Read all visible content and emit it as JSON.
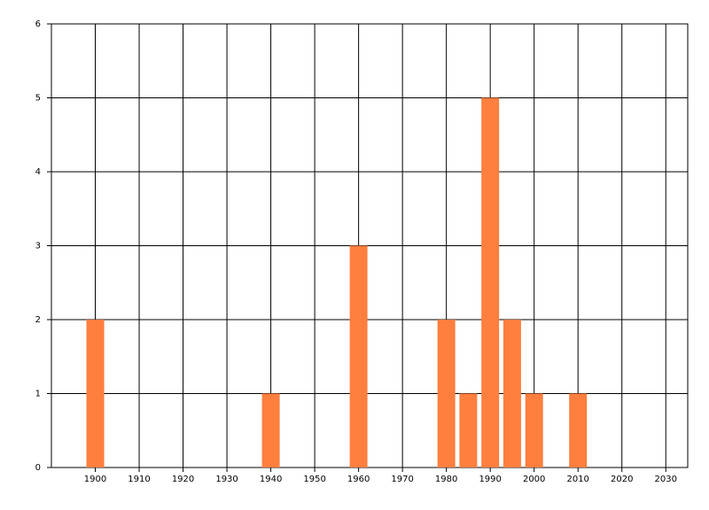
{
  "chart_data": {
    "type": "bar",
    "x": [
      1900,
      1940,
      1960,
      1980,
      1985,
      1990,
      1995,
      2000,
      2010
    ],
    "values": [
      2,
      1,
      3,
      2,
      1,
      5,
      2,
      1,
      1
    ],
    "color": "#ff7f3f",
    "xlim": [
      1890,
      2035
    ],
    "xticks": [
      1900,
      1910,
      1920,
      1930,
      1940,
      1950,
      1960,
      1970,
      1980,
      1990,
      2000,
      2010,
      2020,
      2030
    ],
    "ylim": [
      0,
      6
    ],
    "yticks": [
      0,
      1,
      2,
      3,
      4,
      5,
      6
    ],
    "grid": true
  }
}
